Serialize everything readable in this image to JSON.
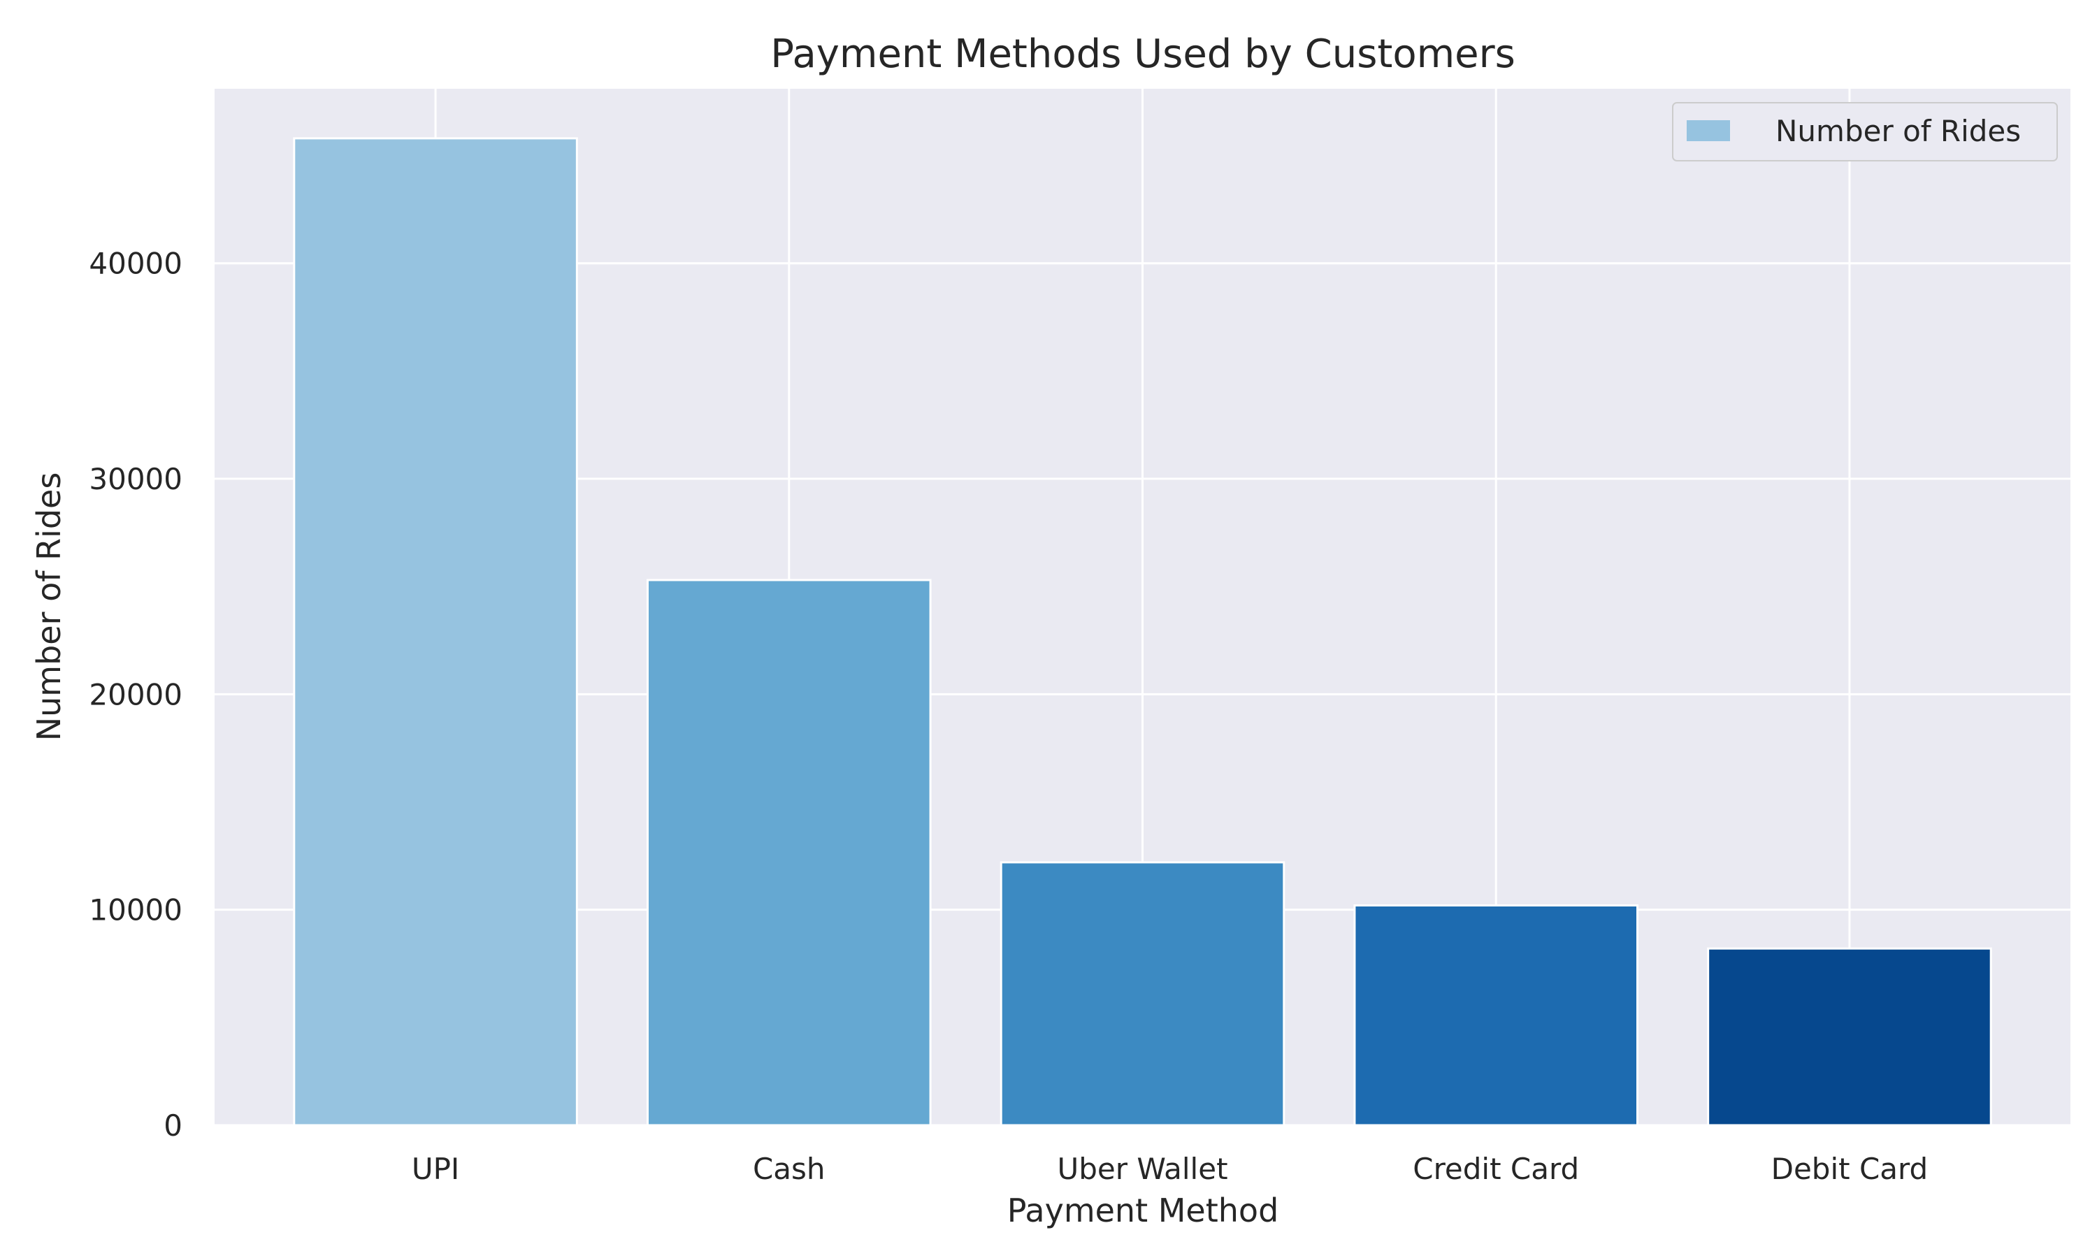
{
  "chart_data": {
    "type": "bar",
    "title": "Payment Methods Used by Customers",
    "xlabel": "Payment Method",
    "ylabel": "Number of Rides",
    "categories": [
      "UPI",
      "Cash",
      "Uber Wallet",
      "Credit Card",
      "Debit Card"
    ],
    "series": [
      {
        "name": "Number of Rides",
        "values": [
          45800,
          25300,
          12200,
          10200,
          8200
        ],
        "colors": [
          "#96c3e0",
          "#65a8d2",
          "#3c8ac2",
          "#1d6bb0",
          "#06488e"
        ]
      }
    ],
    "ylim": [
      0,
      48100
    ],
    "yticks": [
      0,
      10000,
      20000,
      30000,
      40000
    ],
    "grid": true,
    "legend_position": "top-right",
    "background": "#eaeaf2",
    "grid_color": "#ffffff"
  }
}
